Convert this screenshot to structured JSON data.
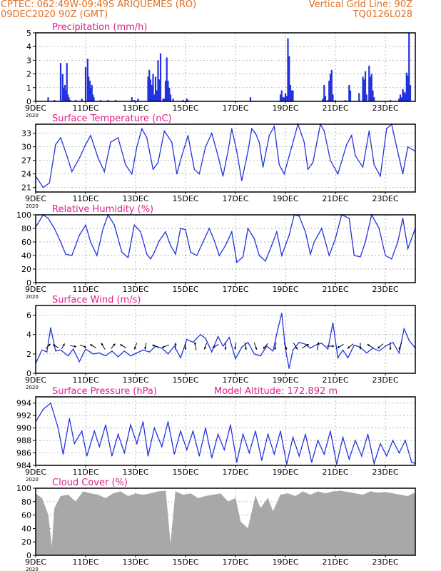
{
  "header": {
    "line1_left": "CPTEC:   062:49W-09:49S   ARIQUEMES (RO)",
    "line2_left": "09DEC2020 90Z (GMT)",
    "line1_right": "Vertical Grid Line: 90Z",
    "line2_right": "TQ0126L028"
  },
  "colors": {
    "header": "#e07020",
    "title": "#e0208a",
    "series": "#2233dd",
    "cloud": "#a8a8a8",
    "grid": "#999999"
  },
  "x_axis": {
    "range_days": [
      9,
      24.2
    ],
    "tick_days": [
      9,
      11,
      13,
      15,
      17,
      19,
      21,
      23
    ],
    "tick_labels": [
      "9DEC",
      "11DEC",
      "13DEC",
      "15DEC",
      "17DEC",
      "19DEC",
      "21DEC",
      "23DEC"
    ],
    "year_label": "2020"
  },
  "chart_data": [
    {
      "type": "bar",
      "title": "Precipitation (mm/h)",
      "ylim": [
        0,
        5
      ],
      "yticks": [
        0,
        1,
        2,
        3,
        4,
        5
      ],
      "x": [
        9.5,
        9.75,
        10.0,
        10.08,
        10.12,
        10.17,
        10.21,
        10.25,
        10.29,
        10.33,
        10.38,
        10.6,
        10.85,
        11.0,
        11.08,
        11.12,
        11.17,
        11.21,
        11.25,
        11.29,
        11.33,
        11.6,
        11.9,
        12.2,
        12.85,
        12.95,
        13.1,
        13.5,
        13.55,
        13.6,
        13.65,
        13.7,
        13.75,
        13.8,
        13.85,
        13.9,
        13.95,
        14.0,
        14.1,
        14.15,
        14.2,
        14.25,
        14.3,
        14.35,
        14.4,
        14.5,
        14.9,
        15.05,
        15.1,
        17.6,
        18.8,
        18.85,
        18.9,
        18.95,
        19.0,
        19.05,
        19.1,
        19.15,
        19.2,
        19.25,
        19.3,
        20.5,
        20.55,
        20.6,
        20.7,
        20.75,
        20.8,
        20.85,
        20.9,
        21.0,
        21.4,
        21.55,
        21.6,
        21.95,
        22.1,
        22.15,
        22.2,
        22.25,
        22.35,
        22.4,
        22.45,
        22.5,
        22.55,
        23.2,
        23.55,
        23.6,
        23.65,
        23.7,
        23.75,
        23.8,
        23.85,
        23.9,
        23.95,
        24.0
      ],
      "values": [
        0.3,
        0.1,
        2.8,
        2.0,
        1.0,
        1.2,
        0.8,
        2.8,
        0.5,
        0.3,
        0.1,
        0.1,
        0.2,
        2.5,
        3.1,
        1.8,
        1.5,
        1.0,
        1.2,
        0.5,
        0.3,
        0.1,
        0.1,
        0.1,
        0.3,
        0.1,
        0.2,
        1.8,
        2.3,
        1.6,
        1.2,
        2.0,
        0.5,
        1.8,
        0.8,
        3.0,
        1.6,
        3.5,
        0.2,
        0.2,
        1.5,
        3.2,
        1.5,
        1.0,
        0.5,
        0.2,
        0.1,
        0.2,
        0.1,
        0.3,
        0.5,
        0.8,
        0.3,
        0.3,
        0.6,
        0.4,
        4.6,
        3.3,
        1.2,
        0.8,
        0.8,
        0.2,
        1.2,
        0.4,
        0.1,
        1.5,
        2.0,
        2.3,
        0.5,
        0.1,
        0.1,
        1.2,
        0.8,
        0.6,
        1.8,
        1.6,
        2.2,
        0.5,
        2.6,
        1.8,
        2.0,
        0.8,
        0.3,
        0.1,
        0.2,
        0.5,
        0.3,
        0.9,
        0.7,
        0.6,
        2.1,
        1.9,
        5.0,
        1.2
      ]
    },
    {
      "type": "line",
      "title": "Surface Temperature (nC)",
      "ylim": [
        20,
        35
      ],
      "yticks": [
        21,
        24,
        27,
        30,
        33
      ],
      "x": [
        9.0,
        9.3,
        9.55,
        9.8,
        10.0,
        10.25,
        10.45,
        10.75,
        11.0,
        11.2,
        11.5,
        11.75,
        12.0,
        12.3,
        12.6,
        12.85,
        13.05,
        13.25,
        13.45,
        13.7,
        13.9,
        14.15,
        14.45,
        14.65,
        14.85,
        15.1,
        15.35,
        15.55,
        15.8,
        16.05,
        16.3,
        16.5,
        16.7,
        16.85,
        17.05,
        17.25,
        17.5,
        17.65,
        17.8,
        17.95,
        18.1,
        18.35,
        18.55,
        18.75,
        18.95,
        19.25,
        19.5,
        19.75,
        19.9,
        20.1,
        20.4,
        20.55,
        20.8,
        21.1,
        21.45,
        21.65,
        21.8,
        22.1,
        22.35,
        22.55,
        22.8,
        23.05,
        23.25,
        23.45,
        23.7,
        23.9,
        24.2
      ],
      "values": [
        23.5,
        21.0,
        22.0,
        30.5,
        32.0,
        28.0,
        24.5,
        27.5,
        30.5,
        32.5,
        27.5,
        24.5,
        31.0,
        32.0,
        26.0,
        24.0,
        30.0,
        34.0,
        32.0,
        25.0,
        26.5,
        33.5,
        31.0,
        24.0,
        28.0,
        32.5,
        25.0,
        24.0,
        30.0,
        33.0,
        28.0,
        23.5,
        29.0,
        34.0,
        29.0,
        22.5,
        29.0,
        34.0,
        33.0,
        31.0,
        25.5,
        32.5,
        34.5,
        26.0,
        24.0,
        30.0,
        35.0,
        31.0,
        25.0,
        26.5,
        35.0,
        33.5,
        27.0,
        24.0,
        30.5,
        32.5,
        28.0,
        25.5,
        33.5,
        26.0,
        23.5,
        34.0,
        35.0,
        30.0,
        24.0,
        30.0,
        29.0
      ]
    },
    {
      "type": "line",
      "title": "Relative Humidity (%)",
      "ylim": [
        0,
        100
      ],
      "yticks": [
        0,
        20,
        40,
        60,
        80,
        100
      ],
      "x": [
        9.0,
        9.3,
        9.5,
        9.75,
        10.0,
        10.2,
        10.45,
        10.75,
        11.0,
        11.2,
        11.45,
        11.7,
        11.9,
        12.15,
        12.45,
        12.7,
        12.95,
        13.2,
        13.45,
        13.6,
        13.75,
        13.95,
        14.2,
        14.4,
        14.6,
        14.8,
        15.0,
        15.2,
        15.45,
        15.7,
        15.95,
        16.15,
        16.35,
        16.6,
        16.85,
        17.05,
        17.3,
        17.5,
        17.75,
        17.95,
        18.2,
        18.45,
        18.65,
        18.85,
        19.15,
        19.35,
        19.55,
        19.8,
        20.0,
        20.15,
        20.45,
        20.75,
        21.0,
        21.25,
        21.55,
        21.75,
        22.0,
        22.2,
        22.45,
        22.75,
        23.0,
        23.25,
        23.5,
        23.7,
        23.9,
        24.2
      ],
      "values": [
        82,
        100,
        95,
        80,
        60,
        42,
        40,
        70,
        85,
        60,
        40,
        80,
        100,
        85,
        45,
        37,
        85,
        75,
        42,
        35,
        45,
        62,
        75,
        55,
        42,
        80,
        78,
        45,
        40,
        60,
        80,
        62,
        40,
        55,
        75,
        30,
        38,
        80,
        65,
        40,
        32,
        55,
        75,
        40,
        70,
        100,
        98,
        75,
        42,
        60,
        80,
        40,
        65,
        100,
        95,
        40,
        38,
        60,
        100,
        80,
        40,
        35,
        60,
        95,
        50,
        80
      ]
    },
    {
      "type": "line",
      "title": "Surface Wind (m/s)",
      "ylim": [
        0,
        7
      ],
      "yticks": [
        0,
        2,
        4,
        6
      ],
      "x": [
        9.0,
        9.25,
        9.45,
        9.6,
        9.8,
        10.0,
        10.3,
        10.5,
        10.75,
        11.0,
        11.3,
        11.55,
        11.8,
        12.05,
        12.3,
        12.55,
        12.8,
        13.05,
        13.3,
        13.55,
        13.8,
        14.05,
        14.3,
        14.55,
        14.8,
        15.05,
        15.3,
        15.6,
        15.8,
        16.05,
        16.3,
        16.5,
        16.75,
        17.0,
        17.25,
        17.5,
        17.75,
        18.0,
        18.25,
        18.5,
        18.7,
        18.85,
        19.0,
        19.15,
        19.3,
        19.55,
        19.8,
        20.0,
        20.2,
        20.45,
        20.7,
        20.9,
        21.1,
        21.3,
        21.5,
        21.75,
        22.0,
        22.25,
        22.5,
        22.75,
        23.0,
        23.3,
        23.55,
        23.75,
        23.95,
        24.2
      ],
      "values": [
        1.0,
        2.4,
        2.2,
        4.7,
        2.3,
        2.4,
        1.8,
        2.5,
        1.2,
        2.5,
        2.0,
        2.1,
        1.8,
        2.3,
        1.7,
        2.3,
        1.8,
        2.1,
        2.4,
        2.2,
        2.8,
        2.6,
        2.0,
        2.8,
        1.6,
        3.5,
        3.2,
        4.0,
        3.6,
        2.2,
        3.8,
        2.8,
        3.7,
        1.5,
        2.7,
        3.2,
        2.0,
        1.8,
        2.8,
        2.3,
        4.6,
        6.2,
        2.5,
        0.5,
        2.4,
        3.2,
        3.0,
        2.6,
        2.9,
        3.1,
        2.5,
        5.2,
        1.6,
        2.4,
        1.6,
        2.9,
        2.7,
        2.1,
        2.6,
        2.3,
        2.8,
        3.2,
        2.1,
        4.6,
        3.4,
        2.6
      ],
      "vectors": {
        "x": [
          9.5,
          9.8,
          10.1,
          10.5,
          10.9,
          11.3,
          11.7,
          12.1,
          12.5,
          13.0,
          13.4,
          13.8,
          14.2,
          14.6,
          15.0,
          15.4,
          15.8,
          16.2,
          16.6,
          17.0,
          17.4,
          17.8,
          18.2,
          18.6,
          19.0,
          19.4,
          19.8,
          20.3,
          20.8,
          21.2,
          21.6,
          22.0,
          22.4,
          22.8,
          23.2,
          23.6
        ],
        "dir_deg": [
          45,
          300,
          30,
          100,
          110,
          300,
          330,
          40,
          300,
          200,
          190,
          290,
          250,
          0,
          180,
          350,
          200,
          240,
          180,
          190,
          170,
          160,
          220,
          190,
          160,
          150,
          60,
          10,
          90,
          240,
          230,
          180,
          300,
          230,
          180,
          200
        ],
        "speed": [
          2.0,
          1.8,
          1.5,
          2.0,
          2.2,
          2.3,
          2.5,
          2.0,
          2.2,
          2.0,
          2.0,
          2.3,
          2.5,
          2.2,
          2.5,
          3.0,
          2.0,
          2.3,
          2.5,
          2.0,
          2.5,
          2.5,
          2.3,
          2.5,
          2.4,
          2.6,
          2.8,
          3.0,
          2.5,
          2.4,
          2.5,
          2.0,
          2.4,
          2.5,
          2.5,
          2.5
        ]
      }
    },
    {
      "type": "line",
      "title": "Surface Pressure (hPa)",
      "annotation": "Model Altitude: 172.892 m",
      "ylim": [
        984,
        995
      ],
      "yticks": [
        984,
        986,
        988,
        990,
        992,
        994
      ],
      "x": [
        9.0,
        9.3,
        9.6,
        9.9,
        10.1,
        10.35,
        10.55,
        10.85,
        11.05,
        11.35,
        11.55,
        11.8,
        12.05,
        12.3,
        12.55,
        12.8,
        13.05,
        13.3,
        13.5,
        13.75,
        14.05,
        14.3,
        14.55,
        14.8,
        15.05,
        15.3,
        15.55,
        15.8,
        16.05,
        16.3,
        16.55,
        16.8,
        17.05,
        17.3,
        17.55,
        17.8,
        18.05,
        18.3,
        18.55,
        18.8,
        19.05,
        19.3,
        19.55,
        19.8,
        20.05,
        20.3,
        20.55,
        20.8,
        21.05,
        21.3,
        21.55,
        21.8,
        22.05,
        22.3,
        22.55,
        22.8,
        23.05,
        23.3,
        23.55,
        23.8,
        24.05,
        24.2
      ],
      "values": [
        991.0,
        993.0,
        994.0,
        990.0,
        985.8,
        991.5,
        987.5,
        989.5,
        985.5,
        989.5,
        987.0,
        990.5,
        985.5,
        989.0,
        986.0,
        990.5,
        987.5,
        991.0,
        985.5,
        990.0,
        987.0,
        991.0,
        985.8,
        989.5,
        986.5,
        989.5,
        985.5,
        990.0,
        985.2,
        989.0,
        986.5,
        990.5,
        984.5,
        989.0,
        986.0,
        989.5,
        984.8,
        989.0,
        985.8,
        989.5,
        984.2,
        988.5,
        985.5,
        989.0,
        984.5,
        988.0,
        985.8,
        989.5,
        984.2,
        988.5,
        985.0,
        988.0,
        985.5,
        989.0,
        984.3,
        987.5,
        985.5,
        988.0,
        986.0,
        988.0,
        984.5,
        984.3
      ]
    },
    {
      "type": "bar",
      "title": "Cloud Cover (%)",
      "ylim": [
        0,
        100
      ],
      "yticks": [
        0,
        20,
        40,
        60,
        80,
        100
      ],
      "x": [
        9.0,
        9.25,
        9.5,
        9.65,
        9.75,
        10.0,
        10.3,
        10.6,
        10.9,
        11.2,
        11.5,
        11.8,
        12.1,
        12.4,
        12.7,
        13.0,
        13.3,
        13.6,
        13.9,
        14.2,
        14.4,
        14.6,
        14.9,
        15.2,
        15.5,
        15.8,
        16.1,
        16.4,
        16.7,
        17.0,
        17.2,
        17.5,
        17.8,
        18.0,
        18.3,
        18.5,
        18.8,
        19.1,
        19.4,
        19.7,
        20.0,
        20.3,
        20.6,
        20.9,
        21.2,
        21.5,
        21.8,
        22.1,
        22.4,
        22.7,
        23.0,
        23.3,
        23.6,
        23.9,
        24.1
      ],
      "values": [
        92,
        85,
        60,
        10,
        70,
        88,
        90,
        80,
        95,
        92,
        90,
        85,
        92,
        95,
        88,
        92,
        90,
        92,
        95,
        96,
        15,
        95,
        90,
        92,
        85,
        88,
        90,
        92,
        80,
        85,
        50,
        40,
        88,
        70,
        85,
        65,
        90,
        92,
        88,
        95,
        90,
        95,
        92,
        95,
        96,
        94,
        92,
        90,
        95,
        93,
        94,
        92,
        90,
        88,
        92
      ]
    }
  ]
}
